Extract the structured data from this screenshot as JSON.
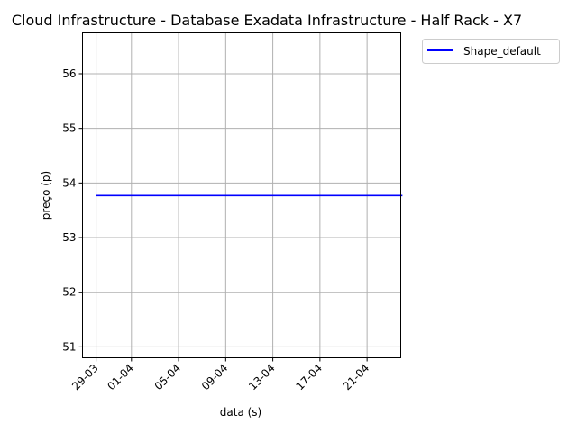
{
  "chart_data": {
    "type": "line",
    "title": "Cloud Infrastructure - Database Exadata Infrastructure - Half Rack - X7",
    "xlabel": "data (s)",
    "ylabel": "preço (p)",
    "x_tick_labels": [
      "29-03",
      "01-04",
      "05-04",
      "09-04",
      "13-04",
      "17-04",
      "21-04"
    ],
    "y_tick_labels": [
      "51",
      "52",
      "53",
      "54",
      "55",
      "56"
    ],
    "ylim": [
      50.8,
      56.75
    ],
    "grid": true,
    "legend_position": "outside-top-right",
    "series": [
      {
        "name": "Shape_default",
        "color": "#0000ff",
        "x": [
          "29-03",
          "24-04"
        ],
        "values": [
          53.77,
          53.77
        ]
      }
    ]
  }
}
